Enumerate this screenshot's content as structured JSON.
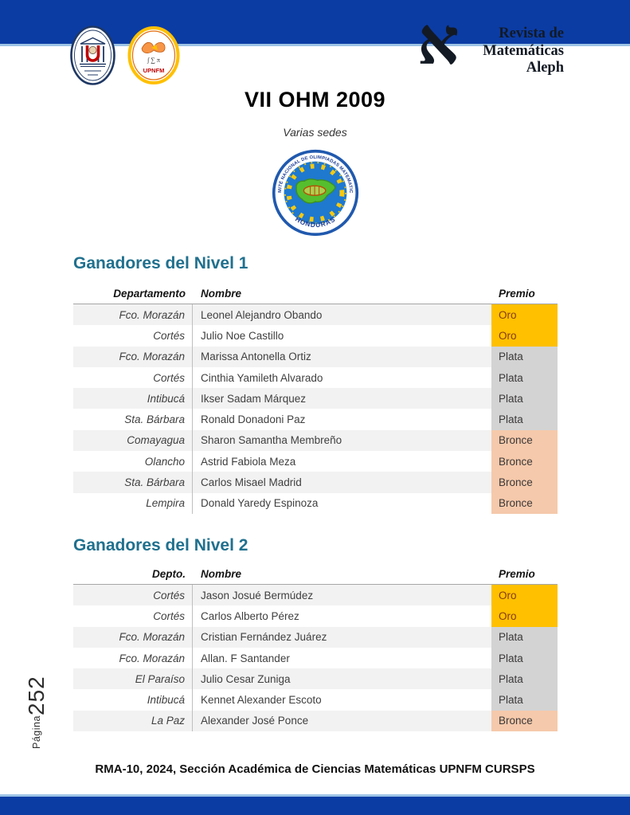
{
  "header": {
    "journal_lines": [
      "Revista de",
      "Matemáticas",
      "Aleph"
    ],
    "aleph_glyph": "א"
  },
  "title": "VII OHM 2009",
  "subtitle": "Varias sedes",
  "emblem": {
    "top_text": "COMITÉ NACIONAL DE OLIMPIADAS MATEMATICAS",
    "bottom_text": "HONDURAS"
  },
  "sections": [
    {
      "heading": "Ganadores del Nivel 1",
      "columns": [
        "Departamento",
        "Nombre",
        "Premio"
      ],
      "rows": [
        {
          "departamento": "Fco. Morazán",
          "nombre": "Leonel Alejandro Obando",
          "premio": "Oro"
        },
        {
          "departamento": "Cortés",
          "nombre": "Julio Noe Castillo",
          "premio": "Oro"
        },
        {
          "departamento": "Fco. Morazán",
          "nombre": "Marissa Antonella Ortiz",
          "premio": "Plata"
        },
        {
          "departamento": "Cortés",
          "nombre": "Cinthia Yamileth Alvarado",
          "premio": "Plata"
        },
        {
          "departamento": "Intibucá",
          "nombre": "Ikser Sadam Márquez",
          "premio": "Plata"
        },
        {
          "departamento": "Sta. Bárbara",
          "nombre": "Ronald Donadoni Paz",
          "premio": "Plata"
        },
        {
          "departamento": "Comayagua",
          "nombre": "Sharon Samantha Membreño",
          "premio": "Bronce"
        },
        {
          "departamento": "Olancho",
          "nombre": "Astrid Fabiola Meza",
          "premio": "Bronce"
        },
        {
          "departamento": "Sta. Bárbara",
          "nombre": "Carlos Misael Madrid",
          "premio": "Bronce"
        },
        {
          "departamento": "Lempira",
          "nombre": "Donald Yaredy Espinoza",
          "premio": "Bronce"
        }
      ]
    },
    {
      "heading": "Ganadores del Nivel 2",
      "columns": [
        "Depto.",
        "Nombre",
        "Premio"
      ],
      "rows": [
        {
          "departamento": "Cortés",
          "nombre": "Jason Josué Bermúdez",
          "premio": "Oro"
        },
        {
          "departamento": "Cortés",
          "nombre": "Carlos Alberto Pérez",
          "premio": "Oro"
        },
        {
          "departamento": "Fco. Morazán",
          "nombre": "Cristian Fernández Juárez",
          "premio": "Plata"
        },
        {
          "departamento": "Fco. Morazán",
          "nombre": "Allan. F Santander",
          "premio": "Plata"
        },
        {
          "departamento": "El Paraíso",
          "nombre": "Julio Cesar Zuniga",
          "premio": "Plata"
        },
        {
          "departamento": "Intibucá",
          "nombre": "Kennet Alexander Escoto",
          "premio": "Plata"
        },
        {
          "departamento": "La Paz",
          "nombre": "Alexander José Ponce",
          "premio": "Bronce"
        }
      ]
    }
  ],
  "premio_styles": {
    "Oro": {
      "bg": "#FFC000",
      "text": "#843C0C"
    },
    "Plata": {
      "bg": "#D3D3D3",
      "text": "#3B3838"
    },
    "Bronce": {
      "bg": "#F5C9AB",
      "text": "#3B3838"
    }
  },
  "footer": "RMA-10, 2024, Sección Académica de Ciencias Matemáticas UPNFM CURSPS",
  "page_label": {
    "word": "Página",
    "number": "252"
  },
  "colors": {
    "bar_blue": "#0B3CA4",
    "bar_light": "#9DC3E6",
    "heading_teal": "#20708E"
  }
}
